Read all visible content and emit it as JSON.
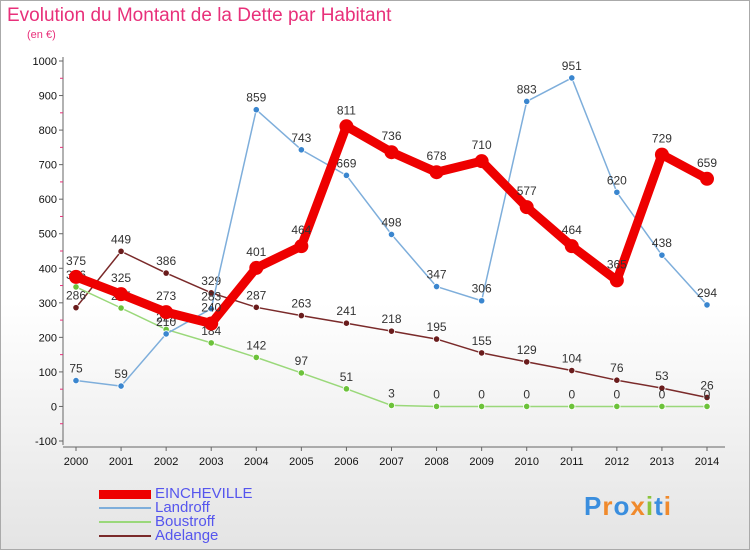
{
  "title": "Evolution du Montant de la Dette par Habitant",
  "unit_label": "(en €)",
  "brand": {
    "letters": [
      "P",
      "r",
      "o",
      "x",
      "i",
      "t",
      "i"
    ],
    "colors": [
      "#3a8ede",
      "#f08a2c",
      "#3a8ede",
      "#f08a2c",
      "#8cc43c",
      "#3a8ede",
      "#f08a2c"
    ]
  },
  "chart_data": {
    "type": "line",
    "title": "Evolution du Montant de la Dette par Habitant",
    "ylabel": "(en €)",
    "xlabel": "",
    "x": [
      "2000",
      "2001",
      "2002",
      "2003",
      "2004",
      "2005",
      "2006",
      "2007",
      "2008",
      "2009",
      "2010",
      "2011",
      "2012",
      "2013",
      "2014"
    ],
    "ylim": [
      -100,
      1000
    ],
    "yticks": [
      -100,
      0,
      100,
      200,
      300,
      400,
      500,
      600,
      700,
      800,
      900,
      1000
    ],
    "grid": false,
    "legend_position": "bottom-left",
    "series": [
      {
        "name": "Adelange",
        "color": "#7a2a2a",
        "point_color": "#6a1c1c",
        "style": "thin",
        "values": [
          286,
          449,
          386,
          329,
          287,
          263,
          241,
          218,
          195,
          155,
          129,
          104,
          76,
          53,
          26
        ]
      },
      {
        "name": "Boustroff",
        "color": "#9ad87a",
        "point_color": "#6cc23a",
        "style": "thin",
        "values": [
          346,
          285,
          223,
          184,
          142,
          97,
          51,
          3,
          0,
          0,
          0,
          0,
          0,
          0,
          0
        ]
      },
      {
        "name": "Landroff",
        "color": "#7eaedb",
        "point_color": "#3a86cf",
        "style": "thin",
        "values": [
          75,
          59,
          210,
          283,
          859,
          743,
          669,
          498,
          347,
          306,
          883,
          951,
          620,
          438,
          294
        ]
      },
      {
        "name": "EINCHEVILLE",
        "color": "#ee0000",
        "point_color": "#ee0000",
        "style": "thick",
        "values": [
          375,
          325,
          273,
          240,
          401,
          464,
          811,
          736,
          678,
          710,
          577,
          464,
          365,
          729,
          659
        ]
      }
    ]
  },
  "legend": [
    {
      "label": "EINCHEVILLE",
      "color": "#ee0000",
      "text_color": "#5555ee",
      "thick": true
    },
    {
      "label": "Landroff",
      "color": "#7eaedb",
      "text_color": "#5555ee",
      "thick": false
    },
    {
      "label": "Boustroff",
      "color": "#9ad87a",
      "text_color": "#5555ee",
      "thick": false
    },
    {
      "label": "Adelange",
      "color": "#7a2a2a",
      "text_color": "#5555ee",
      "thick": false
    }
  ]
}
